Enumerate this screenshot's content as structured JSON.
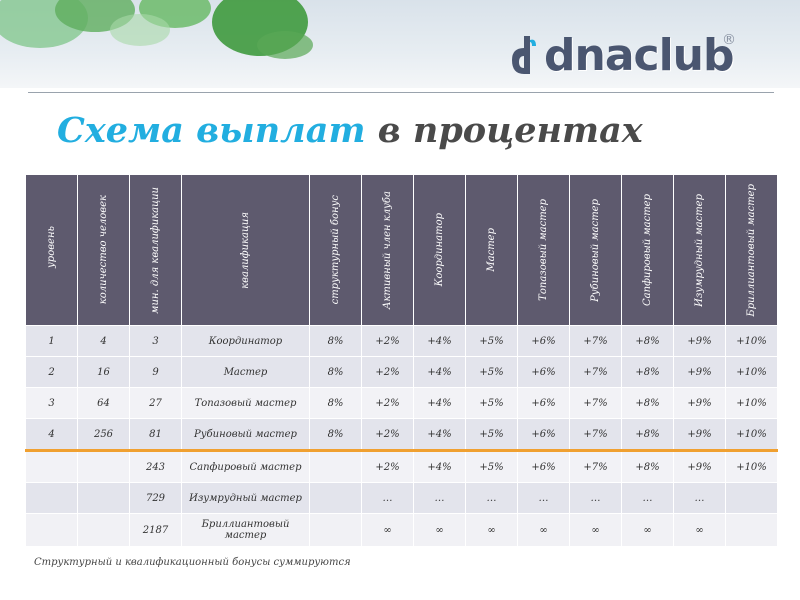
{
  "brand": {
    "logo_text": "dnaclub",
    "registered_mark": "®"
  },
  "title": {
    "highlight": "Схема выплат",
    "rest": " в процентах"
  },
  "table": {
    "headers": [
      "уровень",
      "количество человек",
      "мин. для квалификации",
      "квалификация",
      "структурный бонус",
      "Активный член клуба",
      "Координатор",
      "Мастер",
      "Топазовый мастер",
      "Рубиновый мастер",
      "Сапфировый мастер",
      "Изумрудный мастер",
      "Бриллиантовый мастер"
    ],
    "rows": [
      [
        "1",
        "4",
        "3",
        "Координатор",
        "8%",
        "+2%",
        "+4%",
        "+5%",
        "+6%",
        "+7%",
        "+8%",
        "+9%",
        "+10%"
      ],
      [
        "2",
        "16",
        "9",
        "Мастер",
        "8%",
        "+2%",
        "+4%",
        "+5%",
        "+6%",
        "+7%",
        "+8%",
        "+9%",
        "+10%"
      ],
      [
        "3",
        "64",
        "27",
        "Топазовый мастер",
        "8%",
        "+2%",
        "+4%",
        "+5%",
        "+6%",
        "+7%",
        "+8%",
        "+9%",
        "+10%"
      ],
      [
        "4",
        "256",
        "81",
        "Рубиновый мастер",
        "8%",
        "+2%",
        "+4%",
        "+5%",
        "+6%",
        "+7%",
        "+8%",
        "+9%",
        "+10%"
      ],
      [
        "",
        "",
        "243",
        "Сапфировый мастер",
        "",
        "+2%",
        "+4%",
        "+5%",
        "+6%",
        "+7%",
        "+8%",
        "+9%",
        "+10%"
      ],
      [
        "",
        "",
        "729",
        "Изумрудный мастер",
        "",
        "…",
        "…",
        "…",
        "…",
        "…",
        "…",
        "…",
        ""
      ],
      [
        "",
        "",
        "2187",
        "Бриллиантовый мастер",
        "",
        "∞",
        "∞",
        "∞",
        "∞",
        "∞",
        "∞",
        "∞",
        ""
      ]
    ]
  },
  "footnote": "Структурный и квалификационный бонусы суммируются",
  "colors": {
    "header_bg": "#5e5a6e",
    "title_accent": "#22aee0",
    "separator": "#f0a030"
  }
}
